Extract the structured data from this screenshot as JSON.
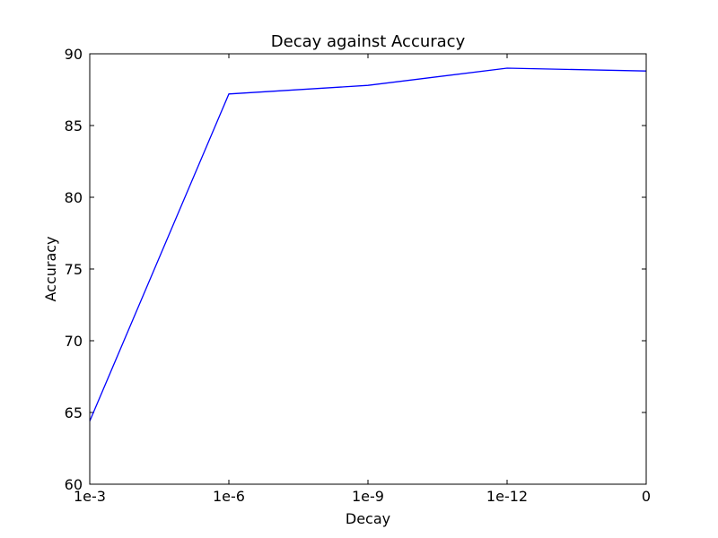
{
  "chart_data": {
    "type": "line",
    "title": "Decay against Accuracy",
    "xlabel": "Decay",
    "ylabel": "Accuracy",
    "categories": [
      "1e-3",
      "1e-6",
      "1e-9",
      "1e-12",
      "0"
    ],
    "ylim": [
      60,
      90
    ],
    "yticks": [
      60,
      65,
      70,
      75,
      80,
      85,
      90
    ],
    "grid": false,
    "legend": "none",
    "series": [
      {
        "values": [
          64.4,
          87.2,
          87.8,
          89.0,
          88.8
        ],
        "color": "#0000ff"
      }
    ]
  }
}
